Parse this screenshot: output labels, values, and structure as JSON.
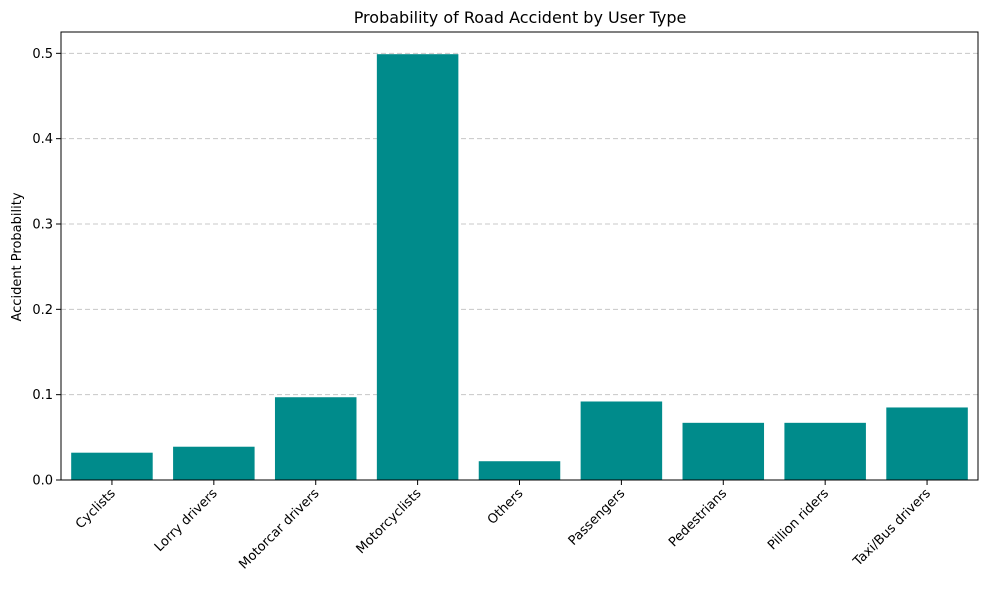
{
  "chart_data": {
    "type": "bar",
    "title": "Probability of Road Accident by User Type",
    "xlabel": "",
    "ylabel": "Accident Probability",
    "categories": [
      "Cyclists",
      "Lorry drivers",
      "Motorcar drivers",
      "Motorcyclists",
      "Others",
      "Passengers",
      "Pedestrians",
      "Pillion riders",
      "Taxi/Bus drivers"
    ],
    "values": [
      0.032,
      0.039,
      0.097,
      0.499,
      0.022,
      0.092,
      0.067,
      0.067,
      0.085
    ],
    "ylim": [
      0,
      0.525
    ],
    "yticks": [
      0.0,
      0.1,
      0.2,
      0.3,
      0.4,
      0.5
    ],
    "ytick_labels": [
      "0.0",
      "0.1",
      "0.2",
      "0.3",
      "0.4",
      "0.5"
    ],
    "grid": "y-dashed",
    "bar_color": "#008b8b",
    "grid_color": "#c8c8c8"
  }
}
